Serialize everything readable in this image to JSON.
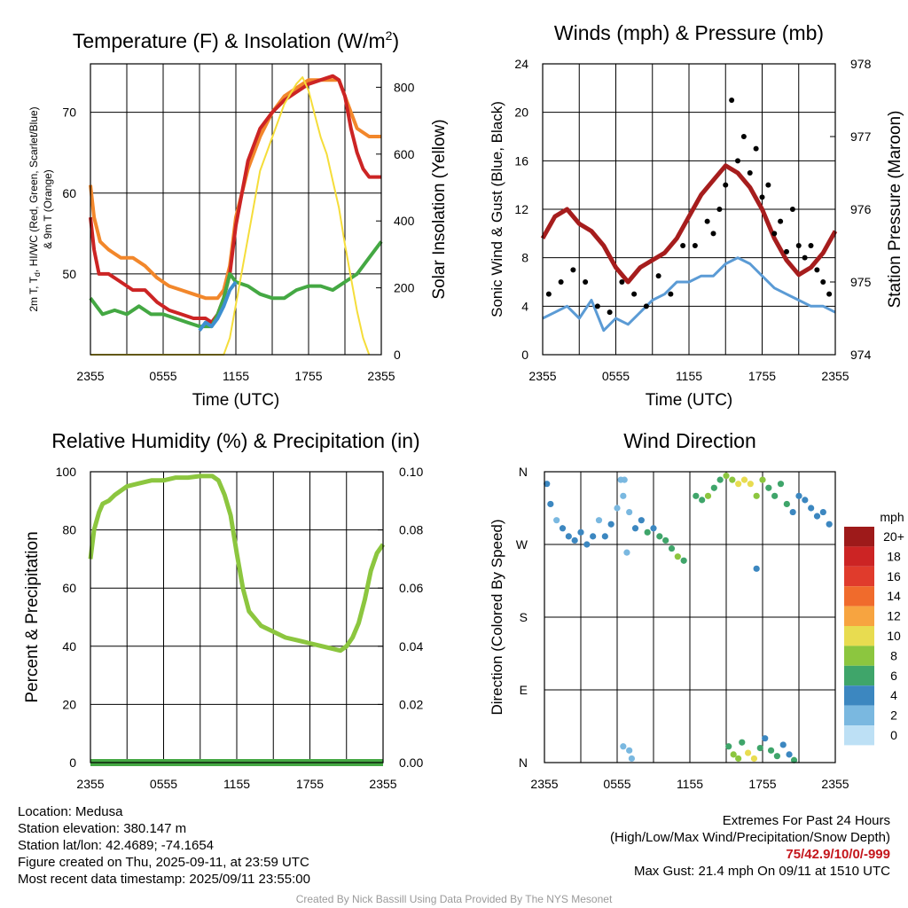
{
  "chart_data": [
    {
      "id": "temperature",
      "type": "line",
      "title": "Temperature (F) & Insolation (W/m",
      "title_superscript": "2",
      "title_suffix": ")",
      "xlabel": "Time (UTC)",
      "ylabel_line1": "2m T, T",
      "ylabel_subscript": "d",
      "ylabel_line1_rest": ", HI/WC (Red, Green, Scarlet/Blue)",
      "ylabel_line2": "& 9m T (Orange)",
      "y2label": "Solar Insolation (Yellow)",
      "x_ticks": [
        "2355",
        "0555",
        "1155",
        "1755",
        "2355"
      ],
      "x_range": [
        0,
        24
      ],
      "ylim": [
        40,
        76
      ],
      "y_ticks": [
        50,
        60,
        70
      ],
      "y2lim": [
        0,
        870
      ],
      "y2_ticks": [
        0,
        200,
        400,
        600,
        800
      ],
      "grid": true,
      "series": [
        {
          "color": "#f2872b",
          "axis": "left",
          "x": [
            0,
            0.3,
            0.8,
            1.5,
            2.5,
            3.5,
            4.5,
            5.5,
            6.5,
            7.5,
            8.5,
            9.5,
            10.5,
            11,
            11.5,
            12,
            13,
            14,
            15,
            16,
            17,
            18,
            19,
            20,
            20.5,
            21,
            21.5,
            22,
            23,
            24
          ],
          "y": [
            61,
            57,
            54,
            53,
            52,
            52,
            51,
            49.5,
            48.5,
            48,
            47.5,
            47,
            47,
            48,
            51,
            57,
            63,
            67,
            70,
            72,
            73,
            74,
            74,
            74,
            74,
            72,
            70,
            68,
            67,
            67
          ]
        },
        {
          "color": "#cc2424",
          "axis": "left",
          "x": [
            0,
            0.3,
            0.7,
            1.5,
            2.5,
            3.5,
            4.5,
            5.5,
            6.5,
            7.5,
            8.5,
            9.5,
            10,
            10.5,
            11,
            11.5,
            12,
            13,
            14,
            15,
            16,
            17,
            18,
            19,
            20,
            20.5,
            21,
            21.5,
            22,
            22.5,
            23,
            24
          ],
          "y": [
            57,
            53,
            50,
            50,
            49,
            48,
            48,
            46.5,
            45.5,
            45,
            44.5,
            44.5,
            44,
            45,
            47,
            50,
            56,
            64,
            68,
            70,
            71.5,
            72.5,
            73.5,
            74,
            74.5,
            74,
            72,
            68,
            65,
            63,
            62,
            62
          ]
        },
        {
          "color": "#44a843",
          "axis": "left",
          "x": [
            0,
            0.5,
            1,
            2,
            3,
            4,
            5,
            6,
            7,
            8,
            9,
            10,
            10.5,
            11,
            11.5,
            12,
            13,
            14,
            15,
            16,
            17,
            18,
            19,
            20,
            21,
            22,
            23,
            24
          ],
          "y": [
            47,
            46,
            45,
            45.5,
            45,
            46,
            45,
            45,
            44.5,
            44,
            43.5,
            43.5,
            45,
            47,
            50,
            49,
            48.5,
            47.5,
            47,
            47,
            48,
            48.5,
            48.5,
            48,
            49,
            50,
            52,
            54
          ]
        },
        {
          "color": "#3d8fd0",
          "axis": "left",
          "x": [
            9,
            9.5,
            10,
            10.5,
            11,
            11.5,
            12
          ],
          "y": [
            43,
            44,
            43.5,
            44.5,
            46,
            48,
            49
          ]
        },
        {
          "color": "#f5dd3a",
          "axis": "right",
          "x": [
            0,
            10,
            11,
            11.5,
            12,
            13,
            14,
            15,
            16,
            17,
            17.5,
            18,
            18.5,
            19,
            19.5,
            20,
            20.5,
            21,
            21.5,
            22,
            22.5,
            23
          ],
          "y": [
            0,
            0,
            0,
            50,
            150,
            350,
            550,
            650,
            750,
            810,
            830,
            790,
            720,
            650,
            600,
            520,
            440,
            330,
            230,
            130,
            50,
            0
          ]
        }
      ]
    },
    {
      "id": "wind",
      "type": "line",
      "title": "Winds (mph) & Pressure (mb)",
      "xlabel": "Time (UTC)",
      "ylabel": "Sonic Wind & Gust (Blue, Black)",
      "y2label": "Station Pressure (Maroon)",
      "x_ticks": [
        "2355",
        "0555",
        "1155",
        "1755",
        "2355"
      ],
      "x_range": [
        0,
        24
      ],
      "ylim": [
        0,
        24
      ],
      "y_ticks": [
        0,
        4,
        8,
        12,
        16,
        20,
        24
      ],
      "y2lim": [
        974,
        978
      ],
      "y2_ticks": [
        974,
        975,
        976,
        977,
        978
      ],
      "grid": true,
      "series": [
        {
          "color": "#5b9bd5",
          "axis": "left",
          "x": [
            0,
            1,
            2,
            3,
            4,
            5,
            6,
            7,
            8,
            9,
            10,
            11,
            12,
            13,
            14,
            15,
            16,
            17,
            18,
            19,
            20,
            21,
            22,
            23,
            24
          ],
          "y": [
            3,
            3.5,
            4,
            3,
            4.5,
            2,
            3,
            2.5,
            3.5,
            4.5,
            5,
            6,
            6,
            6.5,
            6.5,
            7.5,
            8,
            7.5,
            6.5,
            5.5,
            5,
            4.5,
            4,
            4,
            3.5
          ]
        },
        {
          "color": "#a61d1d",
          "axis": "right",
          "x": [
            0,
            1,
            2,
            3,
            4,
            5,
            6,
            7,
            8,
            9,
            10,
            11,
            12,
            13,
            14,
            15,
            16,
            17,
            18,
            19,
            20,
            21,
            22,
            23,
            24
          ],
          "y": [
            975.6,
            975.9,
            976.0,
            975.8,
            975.7,
            975.5,
            975.2,
            975.0,
            975.2,
            975.3,
            975.4,
            975.6,
            975.9,
            976.2,
            976.4,
            976.6,
            976.5,
            976.3,
            976.0,
            975.6,
            975.3,
            975.1,
            975.2,
            975.4,
            975.7
          ]
        },
        {
          "color": "#000000",
          "axis": "left",
          "style": "dots",
          "x": [
            0.5,
            1.5,
            2.5,
            3.5,
            4.5,
            5.5,
            6.5,
            7.5,
            8.5,
            9.5,
            10.5,
            11.5,
            12.5,
            13.5,
            14,
            14.5,
            15,
            15.5,
            16,
            16.5,
            17,
            17.5,
            18,
            18.5,
            19,
            19.5,
            20,
            20.5,
            21,
            21.5,
            22,
            22.5,
            23,
            23.5
          ],
          "y": [
            5,
            6,
            7,
            6,
            4,
            3.5,
            6,
            5,
            4,
            6.5,
            5,
            9,
            9,
            11,
            10,
            12,
            14,
            21,
            16,
            18,
            15,
            17,
            13,
            14,
            10,
            11,
            8.5,
            12,
            9,
            8,
            9,
            7,
            6,
            5
          ]
        }
      ]
    },
    {
      "id": "humidity",
      "type": "line",
      "title": "Relative Humidity (%) & Precipitation (in)",
      "ylabel": "Percent & Precipitation",
      "x_ticks": [
        "2355",
        "0555",
        "1155",
        "1755",
        "2355"
      ],
      "x_range": [
        0,
        24
      ],
      "ylim": [
        0,
        100
      ],
      "y_ticks": [
        0,
        20,
        40,
        60,
        80,
        100
      ],
      "y2lim": [
        0,
        0.1
      ],
      "y2_ticks": [
        "0.00",
        "0.02",
        "0.04",
        "0.06",
        "0.08",
        "0.10"
      ],
      "grid": true,
      "series": [
        {
          "color": "#8cc63f",
          "axis": "left",
          "x": [
            0,
            0.3,
            0.7,
            1,
            1.5,
            2,
            3,
            4,
            5,
            6,
            7,
            8,
            9,
            10,
            10.5,
            11,
            11.5,
            12,
            12.5,
            13,
            14,
            15,
            16,
            17,
            18,
            19,
            20,
            20.5,
            21,
            21.5,
            22,
            22.5,
            23,
            23.5,
            24
          ],
          "y": [
            70,
            80,
            86,
            89,
            90,
            92,
            95,
            96,
            97,
            97,
            98,
            98,
            98.5,
            98.5,
            97,
            92,
            85,
            72,
            60,
            52,
            47,
            45,
            43,
            42,
            41,
            40,
            39,
            38.5,
            40,
            43,
            48,
            56,
            66,
            72,
            75
          ]
        },
        {
          "color": "#44a843",
          "axis": "left",
          "x": [
            0,
            24
          ],
          "y": [
            0,
            0
          ]
        }
      ]
    },
    {
      "id": "direction",
      "type": "scatter",
      "title": "Wind Direction",
      "ylabel": "Direction (Colored By Speed)",
      "x_ticks": [
        "2355",
        "0555",
        "1155",
        "1755",
        "2355"
      ],
      "x_range": [
        0,
        24
      ],
      "ylim": [
        0,
        360
      ],
      "y_ticks": [
        "N",
        "E",
        "S",
        "W",
        "N"
      ],
      "grid": true,
      "colorbar": {
        "title": "mph",
        "labels": [
          "20+",
          "18",
          "16",
          "14",
          "12",
          "10",
          "8",
          "6",
          "4",
          "2",
          "0"
        ],
        "colors": [
          "#9e1a1a",
          "#cc2424",
          "#e03b2c",
          "#f06b2c",
          "#f7a440",
          "#e8dc50",
          "#8cc63f",
          "#3fa56a",
          "#3c87c0",
          "#7ab8e0",
          "#bde0f5"
        ]
      },
      "points": [
        {
          "x": 0.2,
          "dir": 345,
          "speed": 4
        },
        {
          "x": 0.5,
          "dir": 320,
          "speed": 3
        },
        {
          "x": 1,
          "dir": 300,
          "speed": 2
        },
        {
          "x": 1.5,
          "dir": 290,
          "speed": 3
        },
        {
          "x": 2,
          "dir": 280,
          "speed": 4
        },
        {
          "x": 2.5,
          "dir": 275,
          "speed": 3
        },
        {
          "x": 3,
          "dir": 285,
          "speed": 4
        },
        {
          "x": 3.5,
          "dir": 270,
          "speed": 3
        },
        {
          "x": 4,
          "dir": 280,
          "speed": 4
        },
        {
          "x": 4.5,
          "dir": 300,
          "speed": 2
        },
        {
          "x": 5,
          "dir": 280,
          "speed": 3
        },
        {
          "x": 5.5,
          "dir": 295,
          "speed": 3
        },
        {
          "x": 6,
          "dir": 315,
          "speed": 2
        },
        {
          "x": 6.5,
          "dir": 330,
          "speed": 1
        },
        {
          "x": 7,
          "dir": 310,
          "speed": 2
        },
        {
          "x": 7.5,
          "dir": 290,
          "speed": 3
        },
        {
          "x": 8,
          "dir": 300,
          "speed": 4
        },
        {
          "x": 8.5,
          "dir": 285,
          "speed": 5
        },
        {
          "x": 9,
          "dir": 290,
          "speed": 4
        },
        {
          "x": 9.5,
          "dir": 280,
          "speed": 6
        },
        {
          "x": 10,
          "dir": 275,
          "speed": 6
        },
        {
          "x": 10.5,
          "dir": 265,
          "speed": 6
        },
        {
          "x": 11,
          "dir": 255,
          "speed": 7
        },
        {
          "x": 11.5,
          "dir": 250,
          "speed": 6
        },
        {
          "x": 6.3,
          "dir": 350,
          "speed": 1
        },
        {
          "x": 6.6,
          "dir": 350,
          "speed": 1
        },
        {
          "x": 6.8,
          "dir": 260,
          "speed": 1
        },
        {
          "x": 6.5,
          "dir": 20,
          "speed": 1
        },
        {
          "x": 7,
          "dir": 15,
          "speed": 1
        },
        {
          "x": 7.2,
          "dir": 5,
          "speed": 1
        },
        {
          "x": 12.5,
          "dir": 330,
          "speed": 6
        },
        {
          "x": 13,
          "dir": 325,
          "speed": 6
        },
        {
          "x": 13.5,
          "dir": 330,
          "speed": 7
        },
        {
          "x": 14,
          "dir": 340,
          "speed": 6
        },
        {
          "x": 14.5,
          "dir": 350,
          "speed": 6
        },
        {
          "x": 15,
          "dir": 355,
          "speed": 7
        },
        {
          "x": 15.5,
          "dir": 350,
          "speed": 8
        },
        {
          "x": 16,
          "dir": 345,
          "speed": 9
        },
        {
          "x": 16.5,
          "dir": 350,
          "speed": 10
        },
        {
          "x": 17,
          "dir": 345,
          "speed": 9
        },
        {
          "x": 17.5,
          "dir": 330,
          "speed": 7
        },
        {
          "x": 18,
          "dir": 350,
          "speed": 8
        },
        {
          "x": 18.5,
          "dir": 340,
          "speed": 6
        },
        {
          "x": 19,
          "dir": 330,
          "speed": 6
        },
        {
          "x": 19.5,
          "dir": 345,
          "speed": 5
        },
        {
          "x": 20,
          "dir": 320,
          "speed": 5
        },
        {
          "x": 20.5,
          "dir": 310,
          "speed": 4
        },
        {
          "x": 21,
          "dir": 330,
          "speed": 4
        },
        {
          "x": 21.5,
          "dir": 325,
          "speed": 4
        },
        {
          "x": 22,
          "dir": 315,
          "speed": 3
        },
        {
          "x": 22.5,
          "dir": 305,
          "speed": 4
        },
        {
          "x": 23,
          "dir": 310,
          "speed": 3
        },
        {
          "x": 23.5,
          "dir": 295,
          "speed": 4
        },
        {
          "x": 17.5,
          "dir": 240,
          "speed": 3
        },
        {
          "x": 15.2,
          "dir": 20,
          "speed": 6
        },
        {
          "x": 15.6,
          "dir": 10,
          "speed": 7
        },
        {
          "x": 16,
          "dir": 5,
          "speed": 8
        },
        {
          "x": 16.3,
          "dir": 25,
          "speed": 5
        },
        {
          "x": 16.8,
          "dir": 12,
          "speed": 9
        },
        {
          "x": 17.3,
          "dir": 5,
          "speed": 10
        },
        {
          "x": 17.8,
          "dir": 18,
          "speed": 6
        },
        {
          "x": 18.2,
          "dir": 30,
          "speed": 4
        },
        {
          "x": 18.7,
          "dir": 15,
          "speed": 5
        },
        {
          "x": 19.2,
          "dir": 8,
          "speed": 6
        },
        {
          "x": 19.7,
          "dir": 22,
          "speed": 4
        },
        {
          "x": 20.2,
          "dir": 10,
          "speed": 3
        },
        {
          "x": 20.6,
          "dir": 3,
          "speed": 6
        }
      ]
    }
  ],
  "footer_left": [
    "Location: Medusa",
    "Station elevation: 380.147 m",
    "Station lat/lon: 42.4689; -74.1654",
    "Figure created on Thu, 2025-09-11, at 23:59 UTC",
    "Most recent data timestamp: 2025/09/11 23:55:00"
  ],
  "footer_right": {
    "line1": "Extremes For Past 24 Hours",
    "line2": "(High/Low/Max Wind/Precipitation/Snow Depth)",
    "values": "75/42.9/10/0/-999",
    "gust": "Max Gust: 21.4 mph On 09/11 at 1510 UTC"
  },
  "credit": "Created By Nick Bassill Using Data Provided By The NYS Mesonet"
}
